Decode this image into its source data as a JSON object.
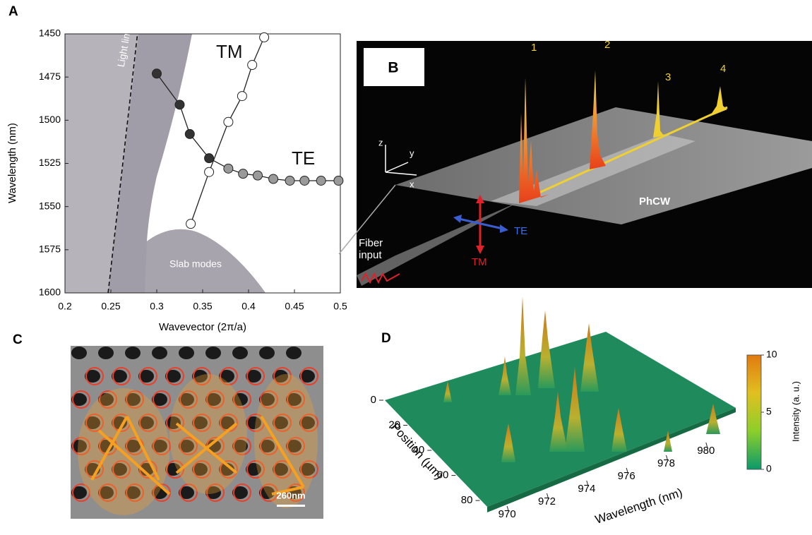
{
  "chart_data": [
    {
      "type": "line",
      "panel_label": "A",
      "xlabel": "Wavevector (2π/a)",
      "ylabel": "Wavelength (nm)",
      "xlim": [
        0.2,
        0.5
      ],
      "ylim": [
        1450,
        1600
      ],
      "y_inverted": true,
      "xticks": [
        0.2,
        0.25,
        0.3,
        0.35,
        0.4,
        0.45,
        0.5
      ],
      "yticks": [
        1450,
        1475,
        1500,
        1525,
        1550,
        1575,
        1600
      ],
      "annotations": [
        "Slab modes"
      ],
      "series": [
        {
          "name": "TE",
          "color": "#222222",
          "x": [
            0.3,
            0.325,
            0.336,
            0.357,
            0.378,
            0.394,
            0.41,
            0.427,
            0.445,
            0.461,
            0.479,
            0.498
          ],
          "values": [
            1473,
            1491,
            1508,
            1522,
            1528,
            1531,
            1532,
            1534,
            1535,
            1535,
            1535,
            1535
          ],
          "marker_colors": [
            "#333333",
            "#333333",
            "#333333",
            "#333333",
            "#9a9a9a",
            "#9a9a9a",
            "#9a9a9a",
            "#9a9a9a",
            "#9a9a9a",
            "#9a9a9a",
            "#9a9a9a",
            "#9a9a9a"
          ]
        },
        {
          "name": "TM",
          "color": "#222222",
          "x": [
            0.417,
            0.404,
            0.393,
            0.378,
            0.357,
            0.337
          ],
          "values": [
            1452,
            1468,
            1486,
            1501,
            1530,
            1560
          ],
          "marker_colors": [
            "#ffffff",
            "#ffffff",
            "#ffffff",
            "#ffffff",
            "#ffffff",
            "#ffffff"
          ]
        },
        {
          "name": "Light line",
          "color": "#111111",
          "dashed": true,
          "x": [
            0.247,
            0.279
          ],
          "values": [
            1600,
            1450
          ]
        }
      ]
    },
    {
      "type": "surface",
      "panel_label": "D",
      "xlabel": "Wavelength (nm)",
      "ylabel": "Position (µm)",
      "colorbar_label": "Intensity (a. u.)",
      "xlim": [
        969,
        981
      ],
      "ylim": [
        0,
        85
      ],
      "xticks": [
        970,
        972,
        974,
        976,
        978,
        980
      ],
      "yticks": [
        0,
        20,
        40,
        60,
        80
      ],
      "clim": [
        0,
        10
      ],
      "cticks": [
        0,
        5,
        10
      ],
      "colormap": [
        "#0a9a6a",
        "#8ccf2a",
        "#e0c020",
        "#e07a10"
      ]
    }
  ],
  "panel_b": {
    "label": "B",
    "peaks": [
      "1",
      "2",
      "3",
      "4"
    ],
    "axes": [
      "z",
      "y",
      "x"
    ],
    "waveguide": "PhCW",
    "fiber": "Fiber input",
    "polarizations": [
      "TE",
      "TM"
    ]
  },
  "panel_c": {
    "label": "C",
    "scale_bar": "260nm"
  }
}
